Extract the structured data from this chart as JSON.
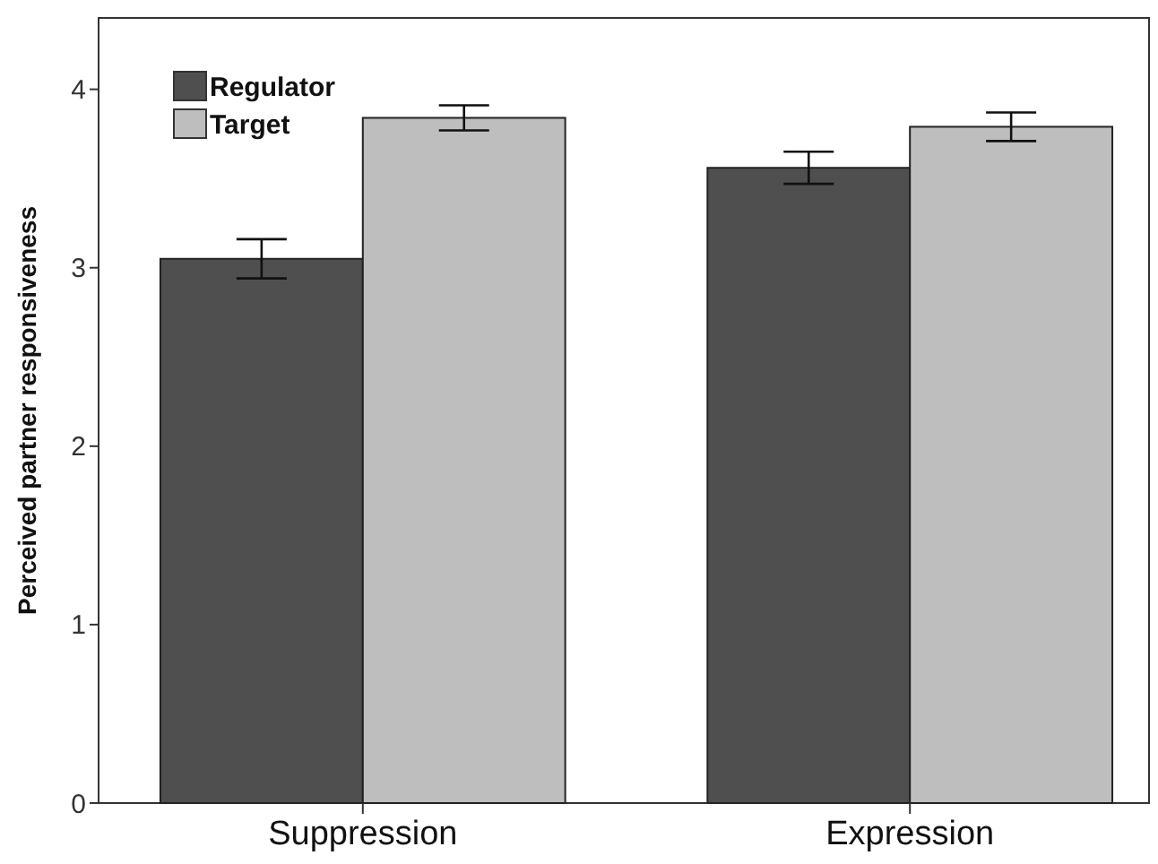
{
  "chart_data": {
    "type": "bar",
    "ylabel": "Perceived partner responsiveness",
    "categories": [
      "Suppression",
      "Expression"
    ],
    "series": [
      {
        "name": "Regulator",
        "color": "#4f4f4f",
        "values": [
          3.05,
          3.56
        ],
        "errors": [
          0.11,
          0.09
        ]
      },
      {
        "name": "Target",
        "color": "#bebebe",
        "values": [
          3.84,
          3.79
        ],
        "errors": [
          0.07,
          0.08
        ]
      }
    ],
    "ylim": [
      0,
      4.4
    ],
    "yticks": [
      0,
      1,
      2,
      3,
      4
    ],
    "legend": "top left"
  }
}
